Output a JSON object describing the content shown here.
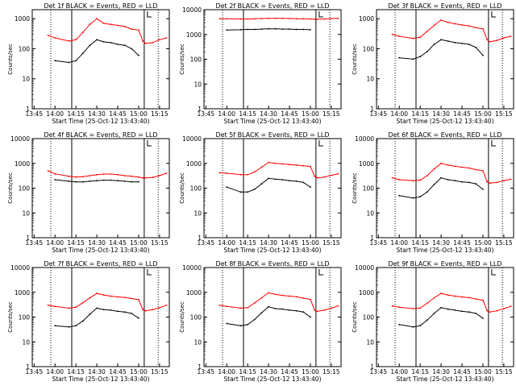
{
  "figure": {
    "xtick_labels": [
      "13:45",
      "14:00",
      "14:15",
      "14:30",
      "14:45",
      "15:00",
      "15:15"
    ],
    "ytick_labels": [
      "1",
      "10",
      "100",
      "1000",
      "10000"
    ],
    "ylabel": "Counts/sec",
    "xlabel": "Start Time (25-Oct-12 13:43:40)",
    "colors": {
      "events": "#000000",
      "lld": "#ff0000",
      "axes": "#000000"
    }
  },
  "chart_data": [
    {
      "type": "line",
      "title": "Det 1f BLACK = Events, RED = LLD",
      "xlabel": "Start Time (25-Oct-12 13:43:40)",
      "ylabel": "Counts/sec",
      "xlim": [
        "13:43:40",
        "15:22:00"
      ],
      "ylim": [
        1,
        2000
      ],
      "yscale": "log",
      "x": [
        "13:55",
        "14:00",
        "14:10",
        "14:15",
        "14:20",
        "14:25",
        "14:30",
        "14:35",
        "14:40",
        "14:45",
        "14:50",
        "14:55",
        "15:00",
        "15:03",
        "15:05",
        "15:10",
        "15:15",
        "15:20"
      ],
      "series": [
        {
          "name": "Events",
          "color": "#000000",
          "values": [
            null,
            40,
            35,
            40,
            70,
            130,
            200,
            170,
            160,
            140,
            130,
            100,
            60,
            null,
            null,
            null,
            null,
            null
          ]
        },
        {
          "name": "LLD",
          "color": "#ff0000",
          "values": [
            280,
            230,
            180,
            200,
            350,
            650,
            1000,
            700,
            650,
            600,
            550,
            450,
            420,
            180,
            150,
            160,
            200,
            230
          ]
        }
      ]
    },
    {
      "type": "line",
      "title": "Det 2f BLACK = Events, RED = LLD",
      "xlabel": "Start Time (25-Oct-12 13:43:40)",
      "ylabel": "Counts/sec",
      "xlim": [
        "13:43:40",
        "15:22:00"
      ],
      "ylim": [
        1,
        10000
      ],
      "yscale": "log",
      "x": [
        "13:55",
        "14:00",
        "14:10",
        "14:15",
        "14:20",
        "14:25",
        "14:30",
        "14:35",
        "14:40",
        "14:45",
        "14:50",
        "14:55",
        "15:00",
        "15:03",
        "15:05",
        "15:10",
        "15:15",
        "15:20"
      ],
      "series": [
        {
          "name": "Events",
          "color": "#000000",
          "values": [
            null,
            1500,
            1550,
            1600,
            1600,
            1650,
            1700,
            1700,
            1650,
            1650,
            1600,
            1600,
            1550,
            null,
            null,
            null,
            null,
            null
          ]
        },
        {
          "name": "LLD",
          "color": "#ff0000",
          "values": [
            4300,
            4300,
            4200,
            4200,
            4300,
            4400,
            4500,
            4500,
            4500,
            4400,
            4300,
            4300,
            4200,
            4100,
            4100,
            4200,
            4400,
            4500
          ]
        }
      ]
    },
    {
      "type": "line",
      "title": "Det 3f BLACK = Events, RED = LLD",
      "xlabel": "Start Time (25-Oct-12 13:43:40)",
      "ylabel": "Counts/sec",
      "xlim": [
        "13:43:40",
        "15:22:00"
      ],
      "ylim": [
        1,
        2000
      ],
      "yscale": "log",
      "x": [
        "13:55",
        "14:00",
        "14:10",
        "14:15",
        "14:20",
        "14:25",
        "14:30",
        "14:35",
        "14:40",
        "14:45",
        "14:50",
        "14:55",
        "15:00",
        "15:03",
        "15:05",
        "15:10",
        "15:15",
        "15:20"
      ],
      "series": [
        {
          "name": "Events",
          "color": "#000000",
          "values": [
            null,
            50,
            45,
            55,
            80,
            140,
            200,
            180,
            160,
            150,
            140,
            110,
            60,
            null,
            null,
            null,
            null,
            null
          ]
        },
        {
          "name": "LLD",
          "color": "#ff0000",
          "values": [
            300,
            260,
            220,
            240,
            380,
            600,
            900,
            750,
            680,
            620,
            580,
            500,
            460,
            200,
            170,
            190,
            230,
            260
          ]
        }
      ]
    },
    {
      "type": "line",
      "title": "Det 4f BLACK = Events, RED = LLD",
      "xlabel": "Start Time (25-Oct-12 13:43:40)",
      "ylabel": "Counts/sec",
      "xlim": [
        "13:43:40",
        "15:22:00"
      ],
      "ylim": [
        1,
        10000
      ],
      "yscale": "log",
      "x": [
        "13:55",
        "14:00",
        "14:10",
        "14:15",
        "14:20",
        "14:25",
        "14:30",
        "14:35",
        "14:40",
        "14:45",
        "14:50",
        "14:55",
        "15:00",
        "15:03",
        "15:05",
        "15:10",
        "15:15",
        "15:20"
      ],
      "series": [
        {
          "name": "Events",
          "color": "#000000",
          "values": [
            null,
            220,
            190,
            180,
            180,
            190,
            200,
            210,
            210,
            200,
            190,
            180,
            180,
            null,
            null,
            null,
            null,
            null
          ]
        },
        {
          "name": "LLD",
          "color": "#ff0000",
          "values": [
            500,
            380,
            300,
            280,
            290,
            320,
            350,
            370,
            370,
            350,
            320,
            300,
            280,
            260,
            260,
            270,
            320,
            400
          ]
        }
      ]
    },
    {
      "type": "line",
      "title": "Det 5f BLACK = Events, RED = LLD",
      "xlabel": "Start Time (25-Oct-12 13:43:40)",
      "ylabel": "Counts/sec",
      "xlim": [
        "13:43:40",
        "15:22:00"
      ],
      "ylim": [
        1,
        10000
      ],
      "yscale": "log",
      "x": [
        "13:55",
        "14:00",
        "14:10",
        "14:15",
        "14:20",
        "14:25",
        "14:30",
        "14:35",
        "14:40",
        "14:45",
        "14:50",
        "14:55",
        "15:00",
        "15:03",
        "15:05",
        "15:10",
        "15:15",
        "15:20"
      ],
      "series": [
        {
          "name": "Events",
          "color": "#000000",
          "values": [
            null,
            110,
            70,
            70,
            90,
            150,
            250,
            230,
            220,
            200,
            190,
            170,
            110,
            null,
            null,
            null,
            null,
            null
          ]
        },
        {
          "name": "LLD",
          "color": "#ff0000",
          "values": [
            420,
            400,
            350,
            350,
            450,
            700,
            1100,
            1000,
            950,
            900,
            850,
            800,
            750,
            300,
            260,
            280,
            330,
            380
          ]
        }
      ]
    },
    {
      "type": "line",
      "title": "Det 6f BLACK = Events, RED = LLD",
      "xlabel": "Start Time (25-Oct-12 13:43:40)",
      "ylabel": "Counts/sec",
      "xlim": [
        "13:43:40",
        "15:22:00"
      ],
      "ylim": [
        1,
        10000
      ],
      "yscale": "log",
      "x": [
        "13:55",
        "14:00",
        "14:10",
        "14:15",
        "14:20",
        "14:25",
        "14:30",
        "14:35",
        "14:40",
        "14:45",
        "14:50",
        "14:55",
        "15:00",
        "15:03",
        "15:05",
        "15:10",
        "15:15",
        "15:20"
      ],
      "series": [
        {
          "name": "Events",
          "color": "#000000",
          "values": [
            null,
            50,
            40,
            45,
            70,
            140,
            260,
            220,
            200,
            180,
            170,
            150,
            90,
            null,
            null,
            null,
            null,
            null
          ]
        },
        {
          "name": "LLD",
          "color": "#ff0000",
          "values": [
            260,
            220,
            200,
            210,
            320,
            600,
            1000,
            850,
            760,
            700,
            650,
            560,
            500,
            180,
            160,
            170,
            200,
            230
          ]
        }
      ]
    },
    {
      "type": "line",
      "title": "Det 7f BLACK = Events, RED = LLD",
      "xlabel": "Start Time (25-Oct-12 13:43:40)",
      "ylabel": "Counts/sec",
      "xlim": [
        "13:43:40",
        "15:22:00"
      ],
      "ylim": [
        1,
        10000
      ],
      "yscale": "log",
      "x": [
        "13:55",
        "14:00",
        "14:10",
        "14:15",
        "14:20",
        "14:25",
        "14:30",
        "14:35",
        "14:40",
        "14:45",
        "14:50",
        "14:55",
        "15:00",
        "15:03",
        "15:05",
        "15:10",
        "15:15",
        "15:20"
      ],
      "series": [
        {
          "name": "Events",
          "color": "#000000",
          "values": [
            null,
            45,
            40,
            45,
            70,
            130,
            230,
            200,
            190,
            170,
            160,
            140,
            90,
            null,
            null,
            null,
            null,
            null
          ]
        },
        {
          "name": "LLD",
          "color": "#ff0000",
          "values": [
            300,
            270,
            230,
            250,
            380,
            600,
            900,
            780,
            700,
            650,
            620,
            560,
            500,
            200,
            180,
            200,
            240,
            300
          ]
        }
      ]
    },
    {
      "type": "line",
      "title": "Det 8f BLACK = Events, RED = LLD",
      "xlabel": "Start Time (25-Oct-12 13:43:40)",
      "ylabel": "Counts/sec",
      "xlim": [
        "13:43:40",
        "15:22:00"
      ],
      "ylim": [
        1,
        10000
      ],
      "yscale": "log",
      "x": [
        "13:55",
        "14:00",
        "14:10",
        "14:15",
        "14:20",
        "14:25",
        "14:30",
        "14:35",
        "14:40",
        "14:45",
        "14:50",
        "14:55",
        "15:00",
        "15:03",
        "15:05",
        "15:10",
        "15:15",
        "15:20"
      ],
      "series": [
        {
          "name": "Events",
          "color": "#000000",
          "values": [
            null,
            55,
            45,
            50,
            80,
            150,
            260,
            220,
            210,
            190,
            180,
            160,
            100,
            null,
            null,
            null,
            null,
            null
          ]
        },
        {
          "name": "LLD",
          "color": "#ff0000",
          "values": [
            300,
            270,
            230,
            240,
            370,
            600,
            950,
            820,
            750,
            700,
            660,
            580,
            520,
            190,
            170,
            190,
            230,
            280
          ]
        }
      ]
    },
    {
      "type": "line",
      "title": "Det 9f BLACK = Events, RED = LLD",
      "xlabel": "Start Time (25-Oct-12 13:43:40)",
      "ylabel": "Counts/sec",
      "xlim": [
        "13:43:40",
        "15:22:00"
      ],
      "ylim": [
        1,
        10000
      ],
      "yscale": "log",
      "x": [
        "13:55",
        "14:00",
        "14:10",
        "14:15",
        "14:20",
        "14:25",
        "14:30",
        "14:35",
        "14:40",
        "14:45",
        "14:50",
        "14:55",
        "15:00",
        "15:03",
        "15:05",
        "15:10",
        "15:15",
        "15:20"
      ],
      "series": [
        {
          "name": "Events",
          "color": "#000000",
          "values": [
            null,
            50,
            40,
            45,
            75,
            140,
            240,
            210,
            190,
            170,
            160,
            140,
            90,
            null,
            null,
            null,
            null,
            null
          ]
        },
        {
          "name": "LLD",
          "color": "#ff0000",
          "values": [
            280,
            250,
            220,
            230,
            360,
            600,
            900,
            780,
            700,
            650,
            610,
            540,
            480,
            180,
            160,
            180,
            220,
            270
          ]
        }
      ]
    }
  ]
}
